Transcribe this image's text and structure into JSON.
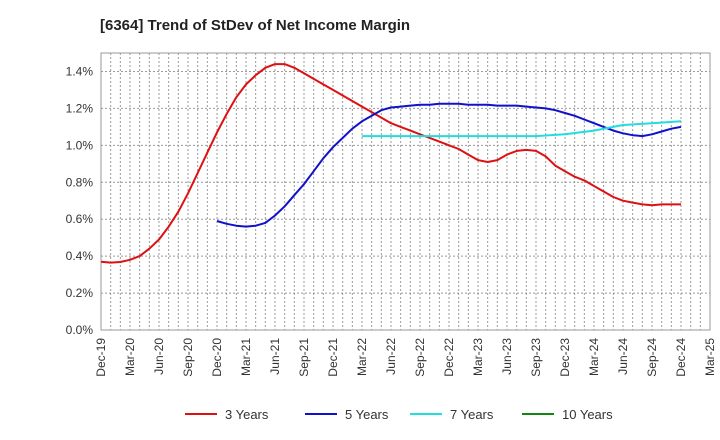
{
  "chart_data": {
    "type": "line",
    "title": "[6364]  Trend of StDev of Net Income Margin",
    "xlabel": "",
    "ylabel": "",
    "x_tick_labels": [
      "Dec-19",
      "Mar-20",
      "Jun-20",
      "Sep-20",
      "Dec-20",
      "Mar-21",
      "Jun-21",
      "Sep-21",
      "Dec-21",
      "Mar-22",
      "Jun-22",
      "Sep-22",
      "Dec-22",
      "Mar-23",
      "Jun-23",
      "Sep-23",
      "Dec-23",
      "Mar-24",
      "Jun-24",
      "Sep-24",
      "Dec-24",
      "Mar-25"
    ],
    "y_tick_labels": [
      "0.0%",
      "0.2%",
      "0.4%",
      "0.6%",
      "0.8%",
      "1.0%",
      "1.2%",
      "1.4%"
    ],
    "ylim": [
      0,
      1.5
    ],
    "y_unit": "%",
    "grid": true,
    "legend_position": "bottom",
    "series": [
      {
        "name": "3 Years",
        "color": "#dd1111",
        "x": [
          "Dec-19",
          "Jan-20",
          "Feb-20",
          "Mar-20",
          "Apr-20",
          "May-20",
          "Jun-20",
          "Jul-20",
          "Aug-20",
          "Sep-20",
          "Oct-20",
          "Nov-20",
          "Dec-20",
          "Jan-21",
          "Feb-21",
          "Mar-21",
          "Apr-21",
          "May-21",
          "Jun-21",
          "Jul-21",
          "Aug-21",
          "Sep-21",
          "Oct-21",
          "Nov-21",
          "Dec-21",
          "Jan-22",
          "Feb-22",
          "Mar-22",
          "Apr-22",
          "May-22",
          "Jun-22",
          "Jul-22",
          "Aug-22",
          "Sep-22",
          "Oct-22",
          "Nov-22",
          "Dec-22",
          "Jan-23",
          "Feb-23",
          "Mar-23",
          "Apr-23",
          "May-23",
          "Jun-23",
          "Jul-23",
          "Aug-23",
          "Sep-23",
          "Oct-23",
          "Nov-23",
          "Dec-23",
          "Jan-24",
          "Feb-24",
          "Mar-24",
          "Apr-24",
          "May-24",
          "Jun-24",
          "Jul-24",
          "Aug-24",
          "Sep-24",
          "Oct-24",
          "Nov-24",
          "Dec-24"
        ],
        "values": [
          0.37,
          0.365,
          0.368,
          0.38,
          0.4,
          0.44,
          0.49,
          0.56,
          0.64,
          0.74,
          0.85,
          0.96,
          1.07,
          1.17,
          1.26,
          1.33,
          1.38,
          1.42,
          1.44,
          1.44,
          1.42,
          1.39,
          1.36,
          1.33,
          1.3,
          1.27,
          1.24,
          1.21,
          1.18,
          1.15,
          1.12,
          1.1,
          1.08,
          1.06,
          1.04,
          1.02,
          1.0,
          0.98,
          0.95,
          0.92,
          0.91,
          0.92,
          0.95,
          0.97,
          0.975,
          0.97,
          0.94,
          0.89,
          0.86,
          0.83,
          0.81,
          0.78,
          0.75,
          0.72,
          0.7,
          0.69,
          0.68,
          0.675,
          0.68,
          0.68,
          0.68
        ]
      },
      {
        "name": "5 Years",
        "color": "#1111cc",
        "x": [
          "Dec-20",
          "Jan-21",
          "Feb-21",
          "Mar-21",
          "Apr-21",
          "May-21",
          "Jun-21",
          "Jul-21",
          "Aug-21",
          "Sep-21",
          "Oct-21",
          "Nov-21",
          "Dec-21",
          "Jan-22",
          "Feb-22",
          "Mar-22",
          "Apr-22",
          "May-22",
          "Jun-22",
          "Jul-22",
          "Aug-22",
          "Sep-22",
          "Oct-22",
          "Nov-22",
          "Dec-22",
          "Jan-23",
          "Feb-23",
          "Mar-23",
          "Apr-23",
          "May-23",
          "Jun-23",
          "Jul-23",
          "Aug-23",
          "Sep-23",
          "Oct-23",
          "Nov-23",
          "Dec-23",
          "Jan-24",
          "Feb-24",
          "Mar-24",
          "Apr-24",
          "May-24",
          "Jun-24",
          "Jul-24",
          "Aug-24",
          "Sep-24",
          "Oct-24",
          "Nov-24",
          "Dec-24"
        ],
        "values": [
          0.59,
          0.575,
          0.565,
          0.56,
          0.565,
          0.58,
          0.62,
          0.67,
          0.73,
          0.79,
          0.86,
          0.93,
          0.99,
          1.04,
          1.09,
          1.13,
          1.16,
          1.19,
          1.205,
          1.21,
          1.215,
          1.22,
          1.22,
          1.225,
          1.225,
          1.225,
          1.22,
          1.22,
          1.22,
          1.215,
          1.215,
          1.215,
          1.21,
          1.205,
          1.2,
          1.19,
          1.175,
          1.16,
          1.14,
          1.12,
          1.1,
          1.08,
          1.065,
          1.055,
          1.05,
          1.06,
          1.075,
          1.09,
          1.1
        ]
      },
      {
        "name": "7 Years",
        "color": "#22dddd",
        "x": [
          "Mar-22",
          "Jun-22",
          "Sep-22",
          "Dec-22",
          "Mar-23",
          "Jun-23",
          "Sep-23",
          "Dec-23",
          "Mar-24",
          "Jun-24",
          "Sep-24",
          "Dec-24"
        ],
        "values": [
          1.05,
          1.05,
          1.05,
          1.05,
          1.05,
          1.05,
          1.05,
          1.06,
          1.08,
          1.11,
          1.12,
          1.13
        ]
      },
      {
        "name": "10 Years",
        "color": "#118811",
        "x": [],
        "values": []
      }
    ]
  }
}
